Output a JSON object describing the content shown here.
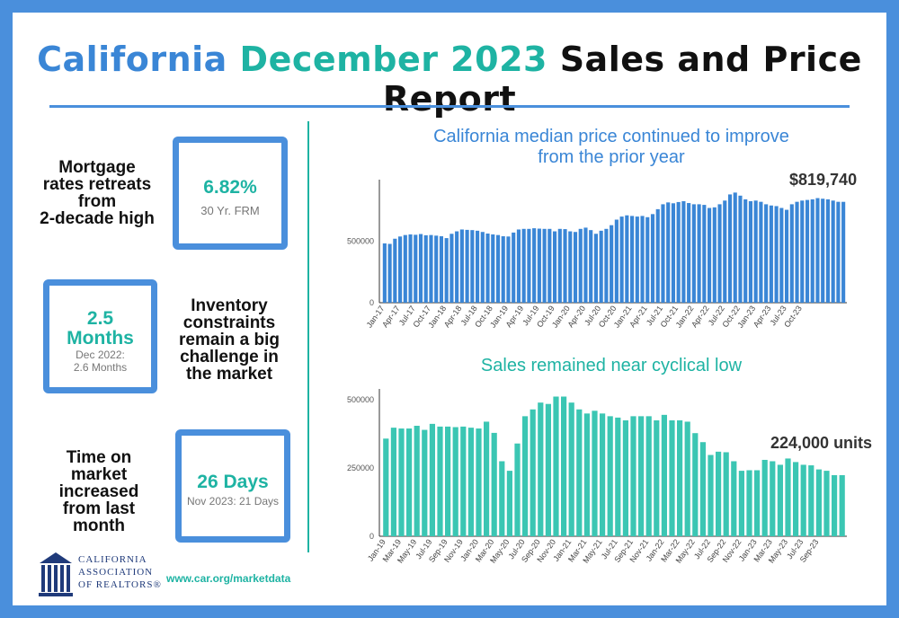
{
  "title": {
    "part1": "California",
    "part2": "December 2023",
    "part3": "Sales and Price Report"
  },
  "stats": {
    "mortgage": {
      "text": [
        "Mortgage",
        "rates retreats",
        "from",
        "2-decade high"
      ],
      "value": "6.82%",
      "sub": "30 Yr. FRM"
    },
    "inventory": {
      "text": [
        "Inventory",
        "constraints",
        "remain a big",
        "challenge in",
        "the market"
      ],
      "value_line1": "2.5",
      "value_line2": "Months",
      "sub_line1": "Dec 2022:",
      "sub_line2": "2.6 Months"
    },
    "time": {
      "text": [
        "Time on",
        "market",
        "increased",
        "from last",
        "month"
      ],
      "value": "26 Days",
      "sub": "Nov 2023: 21 Days"
    }
  },
  "footer": {
    "link": "www.car.org/marketdata",
    "logo_lines": [
      "CALIFORNIA",
      "ASSOCIATION",
      "OF REALTORS®"
    ]
  },
  "colors": {
    "accent_blue": "#3a86d6",
    "accent_teal": "#1eb3a3",
    "border_blue": "#4a8fdc"
  },
  "chart_data": [
    {
      "type": "bar",
      "title": [
        "California median price continued to improve",
        "from the prior year"
      ],
      "callout": "$819,740",
      "color": "#3a86d6",
      "ylim": [
        0,
        1000000
      ],
      "yticks": [
        0,
        500000
      ],
      "ytick_labels": [
        "0",
        "500000"
      ],
      "xtick_labels": [
        "Jan-17",
        "Apr-17",
        "Jul-17",
        "Oct-17",
        "Jan-18",
        "Apr-18",
        "Jul-18",
        "Oct-18",
        "Jan-19",
        "Apr-19",
        "Jul-19",
        "Oct-19",
        "Jan-20",
        "Apr-20",
        "Jul-20",
        "Oct-20",
        "Jan-21",
        "Apr-21",
        "Jul-21",
        "Oct-21",
        "Jan-22",
        "Apr-22",
        "Jul-22",
        "Oct-22",
        "Jan-23",
        "Apr-23",
        "Jul-23",
        "Oct-23"
      ],
      "values": [
        482000,
        478000,
        520000,
        538000,
        550000,
        555000,
        552000,
        558000,
        548000,
        550000,
        545000,
        540000,
        525000,
        560000,
        580000,
        595000,
        592000,
        590000,
        585000,
        575000,
        562000,
        555000,
        550000,
        540000,
        538000,
        570000,
        595000,
        600000,
        600000,
        605000,
        602000,
        600000,
        600000,
        580000,
        600000,
        598000,
        580000,
        575000,
        600000,
        610000,
        590000,
        560000,
        585000,
        600000,
        630000,
        675000,
        700000,
        710000,
        705000,
        700000,
        705000,
        695000,
        720000,
        760000,
        800000,
        815000,
        808000,
        818000,
        825000,
        810000,
        800000,
        800000,
        795000,
        770000,
        775000,
        800000,
        830000,
        880000,
        895000,
        870000,
        840000,
        825000,
        830000,
        820000,
        800000,
        790000,
        785000,
        770000,
        755000,
        800000,
        820000,
        830000,
        835000,
        840000,
        850000,
        845000,
        840000,
        830000,
        820000,
        819740
      ]
    },
    {
      "type": "bar",
      "title": "Sales remained near cyclical low",
      "callout": "224,000 units",
      "color": "#3bc6b3",
      "ylim": [
        0,
        540000
      ],
      "yticks": [
        0,
        250000,
        500000
      ],
      "ytick_labels": [
        "0",
        "250000",
        "500000"
      ],
      "xtick_labels": [
        "Jan-19",
        "Mar-19",
        "May-19",
        "Jul-19",
        "Sep-19",
        "Nov-19",
        "Jan-20",
        "Mar-20",
        "May-20",
        "Jul-20",
        "Sep-20",
        "Nov-20",
        "Jan-21",
        "Mar-21",
        "May-21",
        "Jul-21",
        "Sep-21",
        "Nov-21",
        "Jan-22",
        "Mar-22",
        "May-22",
        "Jul-22",
        "Sep-22",
        "Nov-22",
        "Jan-23",
        "Mar-23",
        "May-23",
        "Jul-23",
        "Sep-23"
      ],
      "values": [
        358000,
        398000,
        395000,
        395000,
        405000,
        390000,
        412000,
        402000,
        402000,
        400000,
        402000,
        398000,
        395000,
        420000,
        379000,
        275000,
        240000,
        340000,
        440000,
        465000,
        490000,
        485000,
        512000,
        512000,
        490000,
        465000,
        450000,
        460000,
        450000,
        440000,
        435000,
        425000,
        440000,
        440000,
        440000,
        425000,
        445000,
        425000,
        425000,
        420000,
        378000,
        345000,
        298000,
        310000,
        308000,
        275000,
        240000,
        242000,
        242000,
        280000,
        275000,
        262000,
        285000,
        272000,
        262000,
        260000,
        245000,
        240000,
        224000,
        224000
      ]
    }
  ]
}
